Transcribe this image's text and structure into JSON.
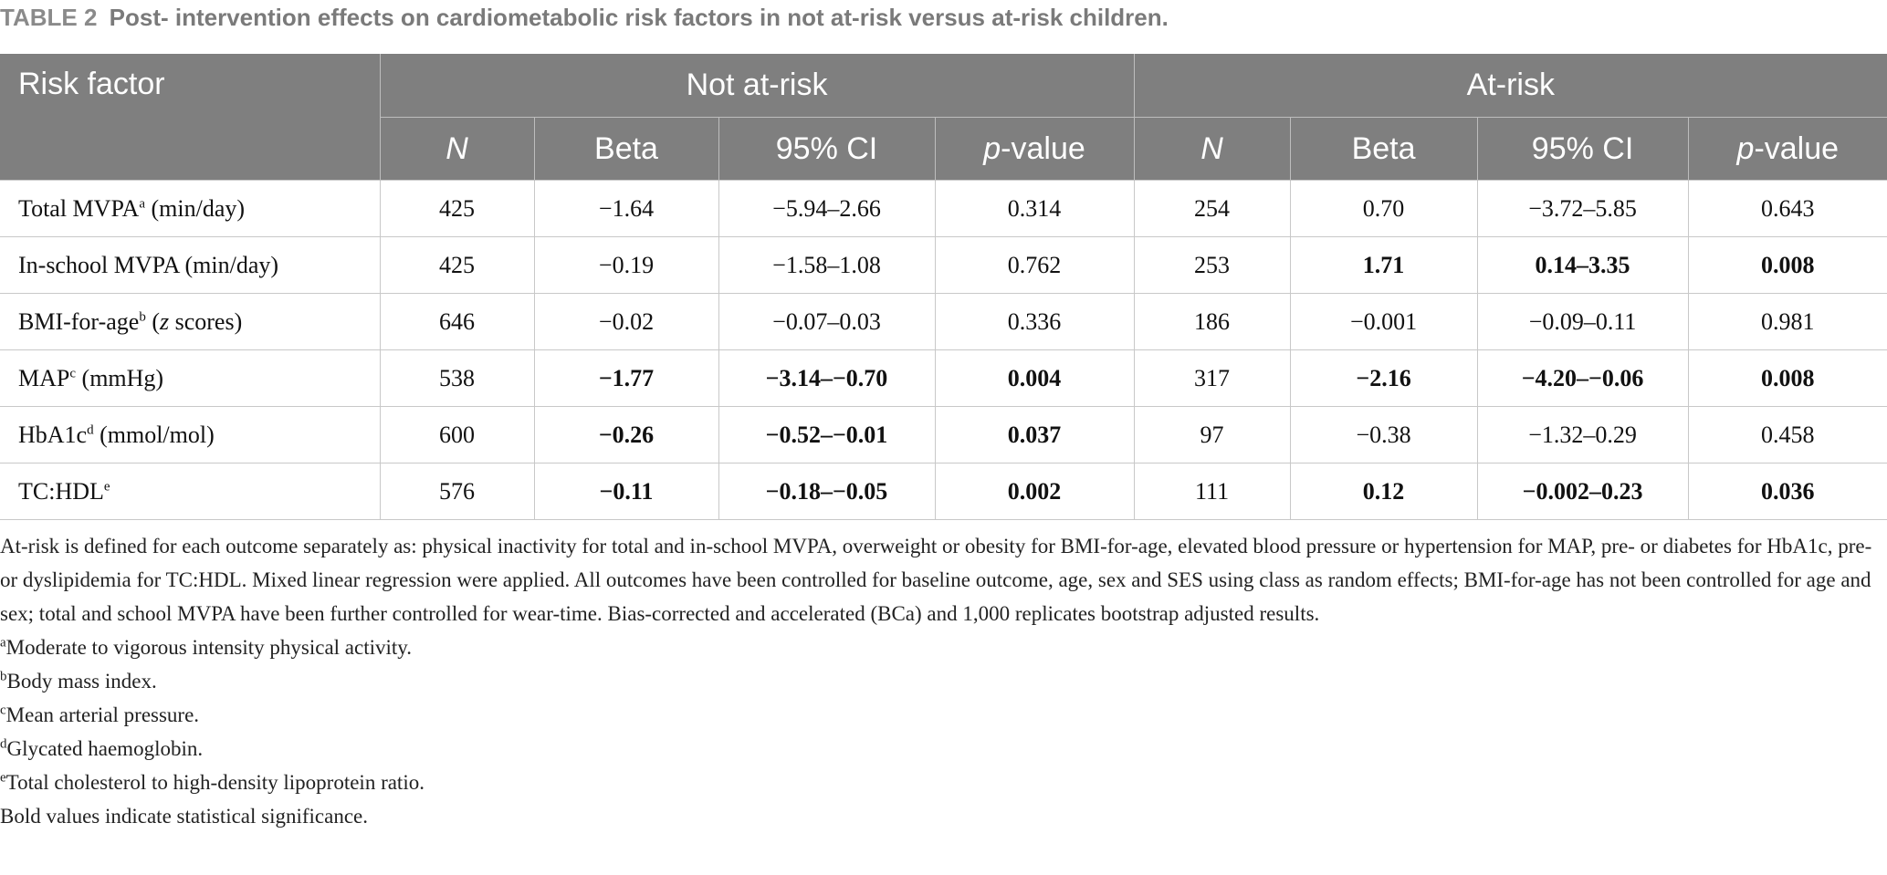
{
  "caption": {
    "label": "TABLE 2",
    "title": "Post- intervention effects on cardiometabolic risk factors in not at-risk versus at-risk children."
  },
  "header": {
    "risk_factor": "Risk factor",
    "group1": "Not at-risk",
    "group2": "At-risk",
    "cols": {
      "n": "N",
      "beta": "Beta",
      "ci": "95% CI",
      "p_italic": "p",
      "p_rest": "-value"
    }
  },
  "rows": [
    {
      "label": "Total MVPA",
      "sup": "a",
      "unit": " (min/day)",
      "n1": "425",
      "beta1": "−1.64",
      "ci1": "−5.94–2.66",
      "p1": "0.314",
      "n2": "254",
      "beta2": "0.70",
      "ci2": "−3.72–5.85",
      "p2": "0.643"
    },
    {
      "label": "In-school MVPA (min/day)",
      "sup": "",
      "unit": "",
      "n1": "425",
      "beta1": "−0.19",
      "ci1": "−1.58–1.08",
      "p1": "0.762",
      "n2": "253",
      "beta2": "1.71",
      "ci2": "0.14–3.35",
      "p2": "0.008"
    },
    {
      "label": "BMI-for-age",
      "sup": "b",
      "unit_pre": " (",
      "unit_it": "z",
      "unit_post": " scores)",
      "n1": "646",
      "beta1": "−0.02",
      "ci1": "−0.07–0.03",
      "p1": "0.336",
      "n2": "186",
      "beta2": "−0.001",
      "ci2": "−0.09–0.11",
      "p2": "0.981"
    },
    {
      "label": "MAP",
      "sup": "c",
      "unit": " (mmHg)",
      "n1": "538",
      "beta1": "−1.77",
      "ci1": "−3.14–−0.70",
      "p1": "0.004",
      "n2": "317",
      "beta2": "−2.16",
      "ci2": "−4.20–−0.06",
      "p2": "0.008"
    },
    {
      "label": "HbA1c",
      "sup": "d",
      "unit": " (mmol/mol)",
      "n1": "600",
      "beta1": "−0.26",
      "ci1": "−0.52–−0.01",
      "p1": "0.037",
      "n2": "97",
      "beta2": "−0.38",
      "ci2": "−1.32–0.29",
      "p2": "0.458"
    },
    {
      "label": "TC:HDL",
      "sup": "e",
      "unit": "",
      "n1": "576",
      "beta1": "−0.11",
      "ci1": "−0.18–−0.05",
      "p1": "0.002",
      "n2": "111",
      "beta2": "0.12",
      "ci2": "−0.002–0.23",
      "p2": "0.036"
    }
  ],
  "notes": {
    "main": "At-risk is defined for each outcome separately as: physical inactivity for total and in-school MVPA, overweight or obesity for BMI-for-age, elevated blood pressure or hypertension for MAP, pre- or diabetes for HbA1c, pre- or dyslipidemia for TC:HDL. Mixed linear regression were applied. All outcomes have been controlled for baseline outcome, age, sex and SES using class as random effects; BMI-for-age has not been controlled for age and sex; total and school MVPA have been further controlled for wear-time. Bias-corrected and accelerated (BCa) and 1,000 replicates bootstrap adjusted results.",
    "footnotes": [
      {
        "mark": "a",
        "text": "Moderate to vigorous intensity physical activity."
      },
      {
        "mark": "b",
        "text": "Body mass index."
      },
      {
        "mark": "c",
        "text": "Mean arterial pressure."
      },
      {
        "mark": "d",
        "text": "Glycated haemoglobin."
      },
      {
        "mark": "e",
        "text": "Total cholesterol to high-density lipoprotein ratio."
      }
    ],
    "bold_note": "Bold values indicate statistical significance."
  }
}
